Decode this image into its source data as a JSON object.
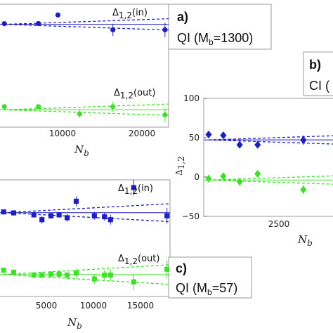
{
  "chart_data": [
    {
      "type": "scatter",
      "panel_letter": "a)",
      "panel_text": "QI (M",
      "panel_text_sub": "b",
      "panel_text_end": "=1300)",
      "xlabel": "N",
      "xlabel_sub": "b",
      "x_ticks": [
        "10000",
        "20000"
      ],
      "annotations": [
        {
          "base": "Δ",
          "sub": "1,2",
          "rest": "(in)"
        },
        {
          "base": "Δ",
          "sub": "1,2",
          "rest": "(out)"
        }
      ],
      "colors": {
        "in": "#1f1fbf",
        "out": "#3ee02a"
      },
      "xlim": [
        0,
        23500
      ],
      "series": [
        {
          "group": "in",
          "marker": "circle",
          "x": [
            800,
            5500,
            8200,
            15800,
            23000
          ],
          "y": [
            1,
            1.2,
            9.5,
            -5,
            -5
          ],
          "err": [
            2,
            2,
            2.5,
            6,
            7
          ]
        },
        {
          "group": "out",
          "marker": "circle",
          "x": [
            800,
            5500,
            11200,
            15800,
            23000
          ],
          "y": [
            -80,
            -80,
            -87,
            -80,
            -88
          ],
          "err": [
            2,
            2,
            4,
            5,
            7
          ]
        }
      ]
    },
    {
      "type": "scatter",
      "panel_letter": "b)",
      "panel_text": "CI (",
      "panel_text_sub": "",
      "panel_text_end": "",
      "xlabel": "N",
      "xlabel_sub": "b",
      "ylabel": "Δ",
      "ylabel_sub": "1,2",
      "x_ticks": [
        "2500"
      ],
      "y_ticks": [
        "100",
        "50",
        "0",
        "−50"
      ],
      "y_tick_values": [
        100,
        50,
        0,
        -50
      ],
      "colors": {
        "in": "#1f1fbf",
        "out": "#3ee02a"
      },
      "xlim": [
        0,
        4000
      ],
      "ylim": [
        -50,
        100
      ],
      "series": [
        {
          "group": "in",
          "marker": "diamond",
          "x": [
            150,
            600,
            1100,
            1650,
            3050
          ],
          "y": [
            54,
            53,
            41,
            41,
            47
          ],
          "err": [
            3,
            3,
            4,
            4,
            6
          ]
        },
        {
          "group": "out",
          "marker": "diamond",
          "x": [
            150,
            600,
            1100,
            1650,
            3050
          ],
          "y": [
            -2,
            1,
            -6,
            4,
            -16
          ],
          "err": [
            3,
            3,
            4,
            4,
            6
          ]
        }
      ]
    },
    {
      "type": "scatter",
      "panel_letter": "c)",
      "panel_text": "QI (M",
      "panel_text_sub": "b",
      "panel_text_end": "=57)",
      "xlabel": "N",
      "xlabel_sub": "b",
      "x_ticks": [
        "5000",
        "10000",
        "15000"
      ],
      "annotations": [
        {
          "base": "Δ",
          "sub": "1,2",
          "rest": "(in)"
        },
        {
          "base": "Δ",
          "sub": "1,2",
          "rest": "(out)"
        }
      ],
      "colors": {
        "in": "#1f1fbf",
        "out": "#3ee02a"
      },
      "xlim": [
        0,
        17000
      ],
      "series": [
        {
          "group": "in",
          "marker": "square",
          "x": [
            500,
            1500,
            3500,
            4300,
            5200,
            6000,
            6800,
            7700,
            9500,
            10500,
            11100,
            13400,
            16700
          ],
          "y": [
            2,
            1,
            -1,
            -6,
            -2,
            -1,
            -4,
            13,
            -2,
            -3,
            -6,
            27,
            -2
          ],
          "err": [
            2,
            2,
            3,
            4,
            3,
            3,
            4,
            5,
            4,
            4,
            5,
            8,
            8
          ]
        },
        {
          "group": "out",
          "marker": "square",
          "x": [
            500,
            1500,
            3500,
            4300,
            5200,
            6000,
            6800,
            7700,
            9500,
            10500,
            11100,
            13400,
            16700
          ],
          "y": [
            -58,
            -60,
            -63,
            -63,
            -62,
            -62,
            -63,
            -61,
            -67,
            -63,
            -63,
            -70,
            -57
          ],
          "err": [
            2,
            2,
            3,
            3,
            3,
            4,
            4,
            5,
            5,
            5,
            6,
            8,
            9
          ]
        }
      ]
    }
  ]
}
